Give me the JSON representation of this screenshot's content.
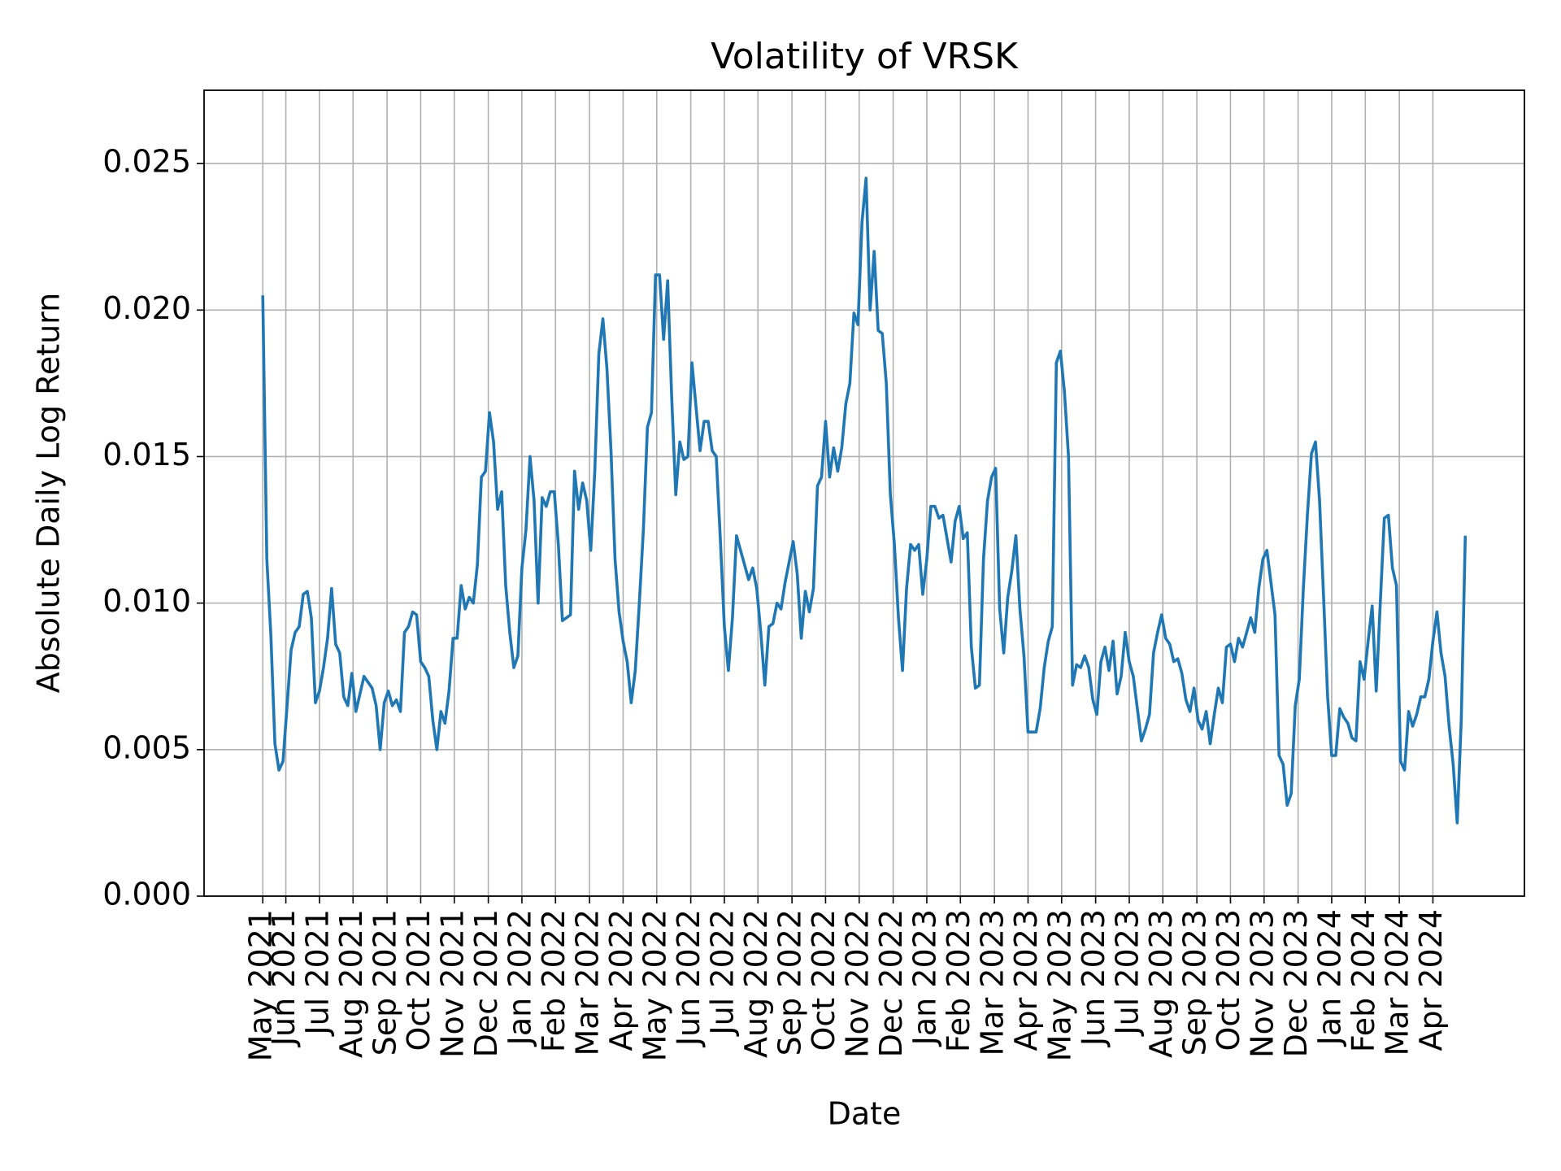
{
  "chart_data": {
    "type": "line",
    "title": "Volatility of VRSK",
    "x_label": "Date",
    "y_label": "Absolute Daily Log Return",
    "x": [
      2021.36,
      2021.37,
      2021.38,
      2021.39,
      2021.4,
      2021.41,
      2021.42,
      2021.43,
      2021.44,
      2021.45,
      2021.46,
      2021.47,
      2021.48,
      2021.49,
      2021.5,
      2021.51,
      2021.52,
      2021.53,
      2021.54,
      2021.55,
      2021.56,
      2021.57,
      2021.58,
      2021.59,
      2021.6,
      2021.61,
      2021.62,
      2021.63,
      2021.64,
      2021.65,
      2021.66,
      2021.67,
      2021.68,
      2021.69,
      2021.7,
      2021.71,
      2021.72,
      2021.73,
      2021.74,
      2021.75,
      2021.76,
      2021.77,
      2021.78,
      2021.79,
      2021.8,
      2021.81,
      2021.82,
      2021.83,
      2021.84,
      2021.85,
      2021.86,
      2021.87,
      2021.88,
      2021.89,
      2021.9,
      2021.91,
      2021.92,
      2021.93,
      2021.94,
      2021.95,
      2021.96,
      2021.97,
      2021.98,
      2021.99,
      2022.0,
      2022.01,
      2022.02,
      2022.03,
      2022.04,
      2022.05,
      2022.06,
      2022.07,
      2022.08,
      2022.09,
      2022.1,
      2022.11,
      2022.12,
      2022.13,
      2022.14,
      2022.15,
      2022.16,
      2022.17,
      2022.18,
      2022.19,
      2022.2,
      2022.21,
      2022.22,
      2022.23,
      2022.24,
      2022.25,
      2022.26,
      2022.27,
      2022.28,
      2022.29,
      2022.3,
      2022.31,
      2022.32,
      2022.33,
      2022.34,
      2022.35,
      2022.36,
      2022.37,
      2022.38,
      2022.39,
      2022.4,
      2022.41,
      2022.42,
      2022.43,
      2022.44,
      2022.45,
      2022.46,
      2022.47,
      2022.48,
      2022.49,
      2022.5,
      2022.51,
      2022.52,
      2022.53,
      2022.54,
      2022.55,
      2022.56,
      2022.57,
      2022.58,
      2022.59,
      2022.6,
      2022.61,
      2022.62,
      2022.63,
      2022.64,
      2022.65,
      2022.66,
      2022.67,
      2022.68,
      2022.69,
      2022.7,
      2022.71,
      2022.72,
      2022.73,
      2022.74,
      2022.75,
      2022.76,
      2022.77,
      2022.78,
      2022.79,
      2022.8,
      2022.81,
      2022.82,
      2022.83,
      2022.84,
      2022.85,
      2022.86,
      2022.87,
      2022.88,
      2022.89,
      2022.9,
      2022.91,
      2022.92,
      2022.93,
      2022.94,
      2022.95,
      2022.96,
      2022.97,
      2022.98,
      2022.99,
      2023.0,
      2023.01,
      2023.02,
      2023.03,
      2023.04,
      2023.05,
      2023.06,
      2023.07,
      2023.08,
      2023.09,
      2023.1,
      2023.11,
      2023.12,
      2023.13,
      2023.14,
      2023.15,
      2023.16,
      2023.17,
      2023.18,
      2023.19,
      2023.2,
      2023.21,
      2023.22,
      2023.23,
      2023.24,
      2023.25,
      2023.26,
      2023.27,
      2023.28,
      2023.29,
      2023.3,
      2023.31,
      2023.32,
      2023.33,
      2023.34,
      2023.35,
      2023.36,
      2023.37,
      2023.38,
      2023.39,
      2023.4,
      2023.41,
      2023.42,
      2023.43,
      2023.44,
      2023.45,
      2023.46,
      2023.47,
      2023.48,
      2023.49,
      2023.5,
      2023.51,
      2023.52,
      2023.53,
      2023.54,
      2023.55,
      2023.56,
      2023.57,
      2023.58,
      2023.59,
      2023.6,
      2023.61,
      2023.62,
      2023.63,
      2023.64,
      2023.65,
      2023.66,
      2023.67,
      2023.68,
      2023.69,
      2023.7,
      2023.71,
      2023.72,
      2023.73,
      2023.74,
      2023.75,
      2023.76,
      2023.77,
      2023.78,
      2023.79,
      2023.8,
      2023.81,
      2023.82,
      2023.83,
      2023.84,
      2023.85,
      2023.86,
      2023.87,
      2023.88,
      2023.89,
      2023.9,
      2023.91,
      2023.92,
      2023.93,
      2023.94,
      2023.95,
      2023.96,
      2023.97,
      2023.98,
      2023.99,
      2024.0,
      2024.01,
      2024.02,
      2024.03,
      2024.04,
      2024.05,
      2024.06,
      2024.07,
      2024.08,
      2024.09,
      2024.1,
      2024.11,
      2024.12,
      2024.13,
      2024.14,
      2024.15,
      2024.16,
      2024.17,
      2024.18,
      2024.19,
      2024.2,
      2024.21,
      2024.22,
      2024.23,
      2024.24,
      2024.25,
      2024.26,
      2024.27,
      2024.28,
      2024.29,
      2024.3,
      2024.31,
      2024.32,
      2024.33
    ],
    "series": [
      {
        "color": "#1f77b4",
        "values": [
          0.0205,
          0.0115,
          0.0089,
          0.0052,
          0.0043,
          0.0046,
          0.0065,
          0.0084,
          0.009,
          0.0092,
          0.0103,
          0.0104,
          0.0095,
          0.0066,
          0.007,
          0.0078,
          0.0088,
          0.0105,
          0.0086,
          0.0083,
          0.0068,
          0.0065,
          0.0076,
          0.0063,
          0.0069,
          0.0075,
          0.0073,
          0.0071,
          0.0065,
          0.005,
          0.0066,
          0.007,
          0.0065,
          0.0067,
          0.0063,
          0.009,
          0.0092,
          0.0097,
          0.0096,
          0.008,
          0.0078,
          0.0075,
          0.006,
          0.005,
          0.0063,
          0.0059,
          0.007,
          0.0088,
          0.0088,
          0.0106,
          0.0098,
          0.0102,
          0.01,
          0.0113,
          0.0143,
          0.0145,
          0.0165,
          0.0155,
          0.0132,
          0.0138,
          0.0106,
          0.009,
          0.0078,
          0.0082,
          0.0112,
          0.0125,
          0.015,
          0.0135,
          0.01,
          0.0136,
          0.0133,
          0.0138,
          0.0138,
          0.012,
          0.0094,
          0.0095,
          0.0096,
          0.0145,
          0.0132,
          0.0141,
          0.0135,
          0.0118,
          0.0145,
          0.0185,
          0.0197,
          0.018,
          0.0152,
          0.0115,
          0.0097,
          0.0087,
          0.008,
          0.0066,
          0.0077,
          0.01,
          0.0125,
          0.016,
          0.0165,
          0.0212,
          0.0212,
          0.019,
          0.021,
          0.017,
          0.0137,
          0.0155,
          0.0149,
          0.015,
          0.0182,
          0.0167,
          0.0152,
          0.0162,
          0.0162,
          0.0152,
          0.015,
          0.0122,
          0.0092,
          0.0077,
          0.0095,
          0.0123,
          0.0118,
          0.0113,
          0.0108,
          0.0112,
          0.0105,
          0.009,
          0.0072,
          0.0092,
          0.0093,
          0.01,
          0.0098,
          0.0107,
          0.0114,
          0.0121,
          0.011,
          0.0088,
          0.0104,
          0.0097,
          0.0105,
          0.014,
          0.0143,
          0.0162,
          0.0143,
          0.0153,
          0.0145,
          0.0153,
          0.0168,
          0.0175,
          0.0199,
          0.0195,
          0.023,
          0.0245,
          0.02,
          0.022,
          0.0193,
          0.0192,
          0.0175,
          0.0137,
          0.012,
          0.0095,
          0.0077,
          0.0105,
          0.012,
          0.0118,
          0.012,
          0.0103,
          0.0115,
          0.0133,
          0.0133,
          0.0129,
          0.013,
          0.0122,
          0.0114,
          0.0128,
          0.0133,
          0.0122,
          0.0124,
          0.0085,
          0.0071,
          0.0072,
          0.0115,
          0.0135,
          0.0143,
          0.0146,
          0.0098,
          0.0083,
          0.0102,
          0.0111,
          0.0123,
          0.0098,
          0.0082,
          0.0056,
          0.0056,
          0.0056,
          0.0064,
          0.0078,
          0.0087,
          0.0092,
          0.0182,
          0.0186,
          0.0172,
          0.015,
          0.0072,
          0.0079,
          0.0078,
          0.0082,
          0.0078,
          0.0067,
          0.0062,
          0.008,
          0.0085,
          0.0077,
          0.0087,
          0.0069,
          0.0075,
          0.009,
          0.008,
          0.0075,
          0.0064,
          0.0053,
          0.0057,
          0.0062,
          0.0083,
          0.009,
          0.0096,
          0.0088,
          0.0086,
          0.008,
          0.0081,
          0.0076,
          0.0067,
          0.0063,
          0.0071,
          0.006,
          0.0057,
          0.0063,
          0.0052,
          0.0062,
          0.0071,
          0.0066,
          0.0085,
          0.0086,
          0.008,
          0.0088,
          0.0085,
          0.009,
          0.0095,
          0.009,
          0.0105,
          0.0115,
          0.0118,
          0.0107,
          0.0096,
          0.0048,
          0.0045,
          0.0031,
          0.0035,
          0.0065,
          0.0074,
          0.0105,
          0.013,
          0.0151,
          0.0155,
          0.0135,
          0.0102,
          0.0068,
          0.0048,
          0.0048,
          0.0064,
          0.0061,
          0.0059,
          0.0054,
          0.0053,
          0.008,
          0.0074,
          0.0087,
          0.0099,
          0.007,
          0.01,
          0.0129,
          0.013,
          0.0112,
          0.0106,
          0.0046,
          0.0043,
          0.0063,
          0.0058,
          0.0062,
          0.0068,
          0.0068,
          0.0074,
          0.0087,
          0.0097,
          0.0083,
          0.0075,
          0.0058,
          0.0045,
          0.0025,
          0.006,
          0.0123
        ]
      }
    ],
    "xlim": [
      2021.215,
      2024.476
    ],
    "ylim": [
      0,
      0.0275
    ],
    "xticks": [
      {
        "value": 2021.36,
        "label": "May 2021"
      },
      {
        "value": 2021.417,
        "label": "Jun 2021"
      },
      {
        "value": 2021.5,
        "label": "Jul 2021"
      },
      {
        "value": 2021.583,
        "label": "Aug 2021"
      },
      {
        "value": 2021.667,
        "label": "Sep 2021"
      },
      {
        "value": 2021.75,
        "label": "Oct 2021"
      },
      {
        "value": 2021.833,
        "label": "Nov 2021"
      },
      {
        "value": 2021.917,
        "label": "Dec 2021"
      },
      {
        "value": 2022,
        "label": "Jan 2022"
      },
      {
        "value": 2022.083,
        "label": "Feb 2022"
      },
      {
        "value": 2022.167,
        "label": "Mar 2022"
      },
      {
        "value": 2022.25,
        "label": "Apr 2022"
      },
      {
        "value": 2022.333,
        "label": "May 2022"
      },
      {
        "value": 2022.417,
        "label": "Jun 2022"
      },
      {
        "value": 2022.5,
        "label": "Jul 2022"
      },
      {
        "value": 2022.583,
        "label": "Aug 2022"
      },
      {
        "value": 2022.667,
        "label": "Sep 2022"
      },
      {
        "value": 2022.75,
        "label": "Oct 2022"
      },
      {
        "value": 2022.833,
        "label": "Nov 2022"
      },
      {
        "value": 2022.917,
        "label": "Dec 2022"
      },
      {
        "value": 2023,
        "label": "Jan 2023"
      },
      {
        "value": 2023.083,
        "label": "Feb 2023"
      },
      {
        "value": 2023.167,
        "label": "Mar 2023"
      },
      {
        "value": 2023.25,
        "label": "Apr 2023"
      },
      {
        "value": 2023.333,
        "label": "May 2023"
      },
      {
        "value": 2023.417,
        "label": "Jun 2023"
      },
      {
        "value": 2023.5,
        "label": "Jul 2023"
      },
      {
        "value": 2023.583,
        "label": "Aug 2023"
      },
      {
        "value": 2023.667,
        "label": "Sep 2023"
      },
      {
        "value": 2023.75,
        "label": "Oct 2023"
      },
      {
        "value": 2023.833,
        "label": "Nov 2023"
      },
      {
        "value": 2023.917,
        "label": "Dec 2023"
      },
      {
        "value": 2024,
        "label": "Jan 2024"
      },
      {
        "value": 2024.083,
        "label": "Feb 2024"
      },
      {
        "value": 2024.167,
        "label": "Mar 2024"
      },
      {
        "value": 2024.25,
        "label": "Apr 2024"
      }
    ],
    "yticks": [
      {
        "value": 0,
        "label": "0.000"
      },
      0.005,
      {
        "value": 0.01,
        "label": "0.010"
      },
      0.015,
      {
        "value": 0.02,
        "label": "0.020"
      },
      0.025
    ],
    "grid": true
  }
}
